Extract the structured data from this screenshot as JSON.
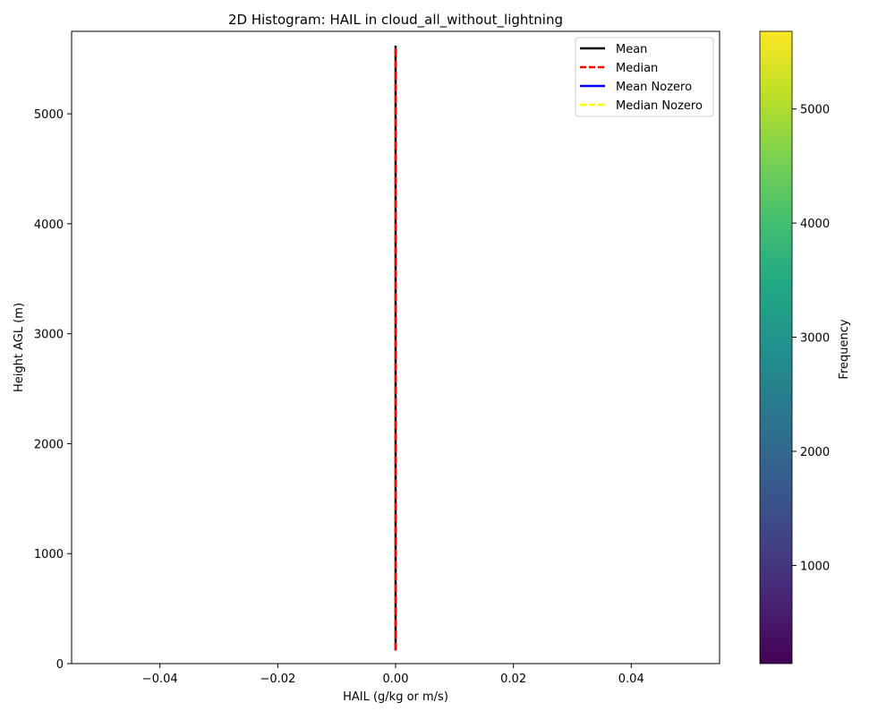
{
  "chart_data": {
    "type": "heatmap",
    "title": "2D Histogram: HAIL in cloud_all_without_lightning",
    "xlabel": "HAIL (g/kg or m/s)",
    "ylabel": "Height AGL (m)",
    "xlim": [
      -0.055,
      0.055
    ],
    "ylim": [
      0,
      5750
    ],
    "x_ticks": [
      -0.04,
      -0.02,
      0.0,
      0.02,
      0.04
    ],
    "x_tick_labels": [
      "−0.04",
      "−0.02",
      "0.00",
      "0.02",
      "0.04"
    ],
    "y_ticks": [
      0,
      1000,
      2000,
      3000,
      4000,
      5000
    ],
    "y_tick_labels": [
      "0",
      "1000",
      "2000",
      "3000",
      "4000",
      "5000"
    ],
    "series": [
      {
        "name": "Mean",
        "color": "#000000",
        "dash": "solid",
        "x": [
          0.0,
          0.0
        ],
        "y": [
          120,
          5620
        ]
      },
      {
        "name": "Median",
        "color": "#ff0000",
        "dash": "dashed",
        "x": [
          0.0,
          0.0
        ],
        "y": [
          120,
          5620
        ]
      },
      {
        "name": "Mean Nozero",
        "color": "#0000ff",
        "dash": "solid",
        "x": [],
        "y": []
      },
      {
        "name": "Median Nozero",
        "color": "#ffff00",
        "dash": "dashed",
        "x": [],
        "y": []
      }
    ],
    "legend_position": "top-right",
    "colorbar": {
      "label": "Frequency",
      "min": 140,
      "max": 5680,
      "ticks": [
        1000,
        2000,
        3000,
        4000,
        5000
      ],
      "tick_labels": [
        "1000",
        "2000",
        "3000",
        "4000",
        "5000"
      ],
      "colormap": "viridis"
    }
  }
}
